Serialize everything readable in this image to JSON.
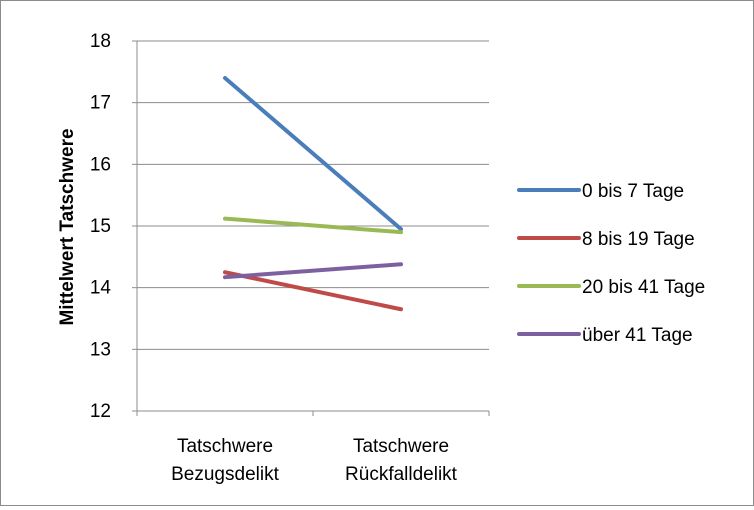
{
  "chart_data": {
    "type": "line",
    "title": "",
    "xlabel": "",
    "ylabel": "Mittelwert Tatschwere",
    "categories": [
      [
        "Tatschwere",
        "Bezugsdelikt"
      ],
      [
        "Tatschwere",
        "Rückfalldelikt"
      ]
    ],
    "ylim": [
      12,
      18
    ],
    "yticks": [
      12,
      13,
      14,
      15,
      16,
      17,
      18
    ],
    "grid": true,
    "legend_position": "right",
    "series": [
      {
        "name": "0 bis 7 Tage",
        "color": "#4a7ebb",
        "values": [
          17.4,
          14.95
        ]
      },
      {
        "name": "8 bis 19 Tage",
        "color": "#be4b48",
        "values": [
          14.25,
          13.65
        ]
      },
      {
        "name": "20 bis 41 Tage",
        "color": "#98b954",
        "values": [
          15.12,
          14.9
        ]
      },
      {
        "name": "über 41 Tage",
        "color": "#7d60a0",
        "values": [
          14.17,
          14.38
        ]
      }
    ]
  }
}
